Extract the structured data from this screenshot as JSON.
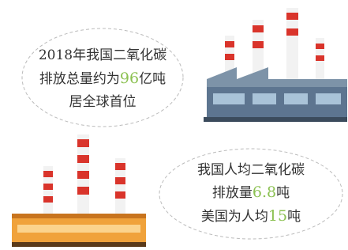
{
  "top_bubble": {
    "lines": [
      {
        "text": "2018年我国二氧化碳"
      },
      {
        "prefix": "排放总量约为",
        "number": "96",
        "suffix": "亿吨"
      },
      {
        "text": "居全球首位"
      }
    ]
  },
  "bottom_bubble": {
    "lines": [
      {
        "text": "我国人均二氧化碳"
      },
      {
        "prefix": "排放量",
        "number": "6.8",
        "suffix": "吨"
      },
      {
        "prefix": "美国为人均",
        "number": "15",
        "suffix": "吨"
      }
    ]
  }
}
